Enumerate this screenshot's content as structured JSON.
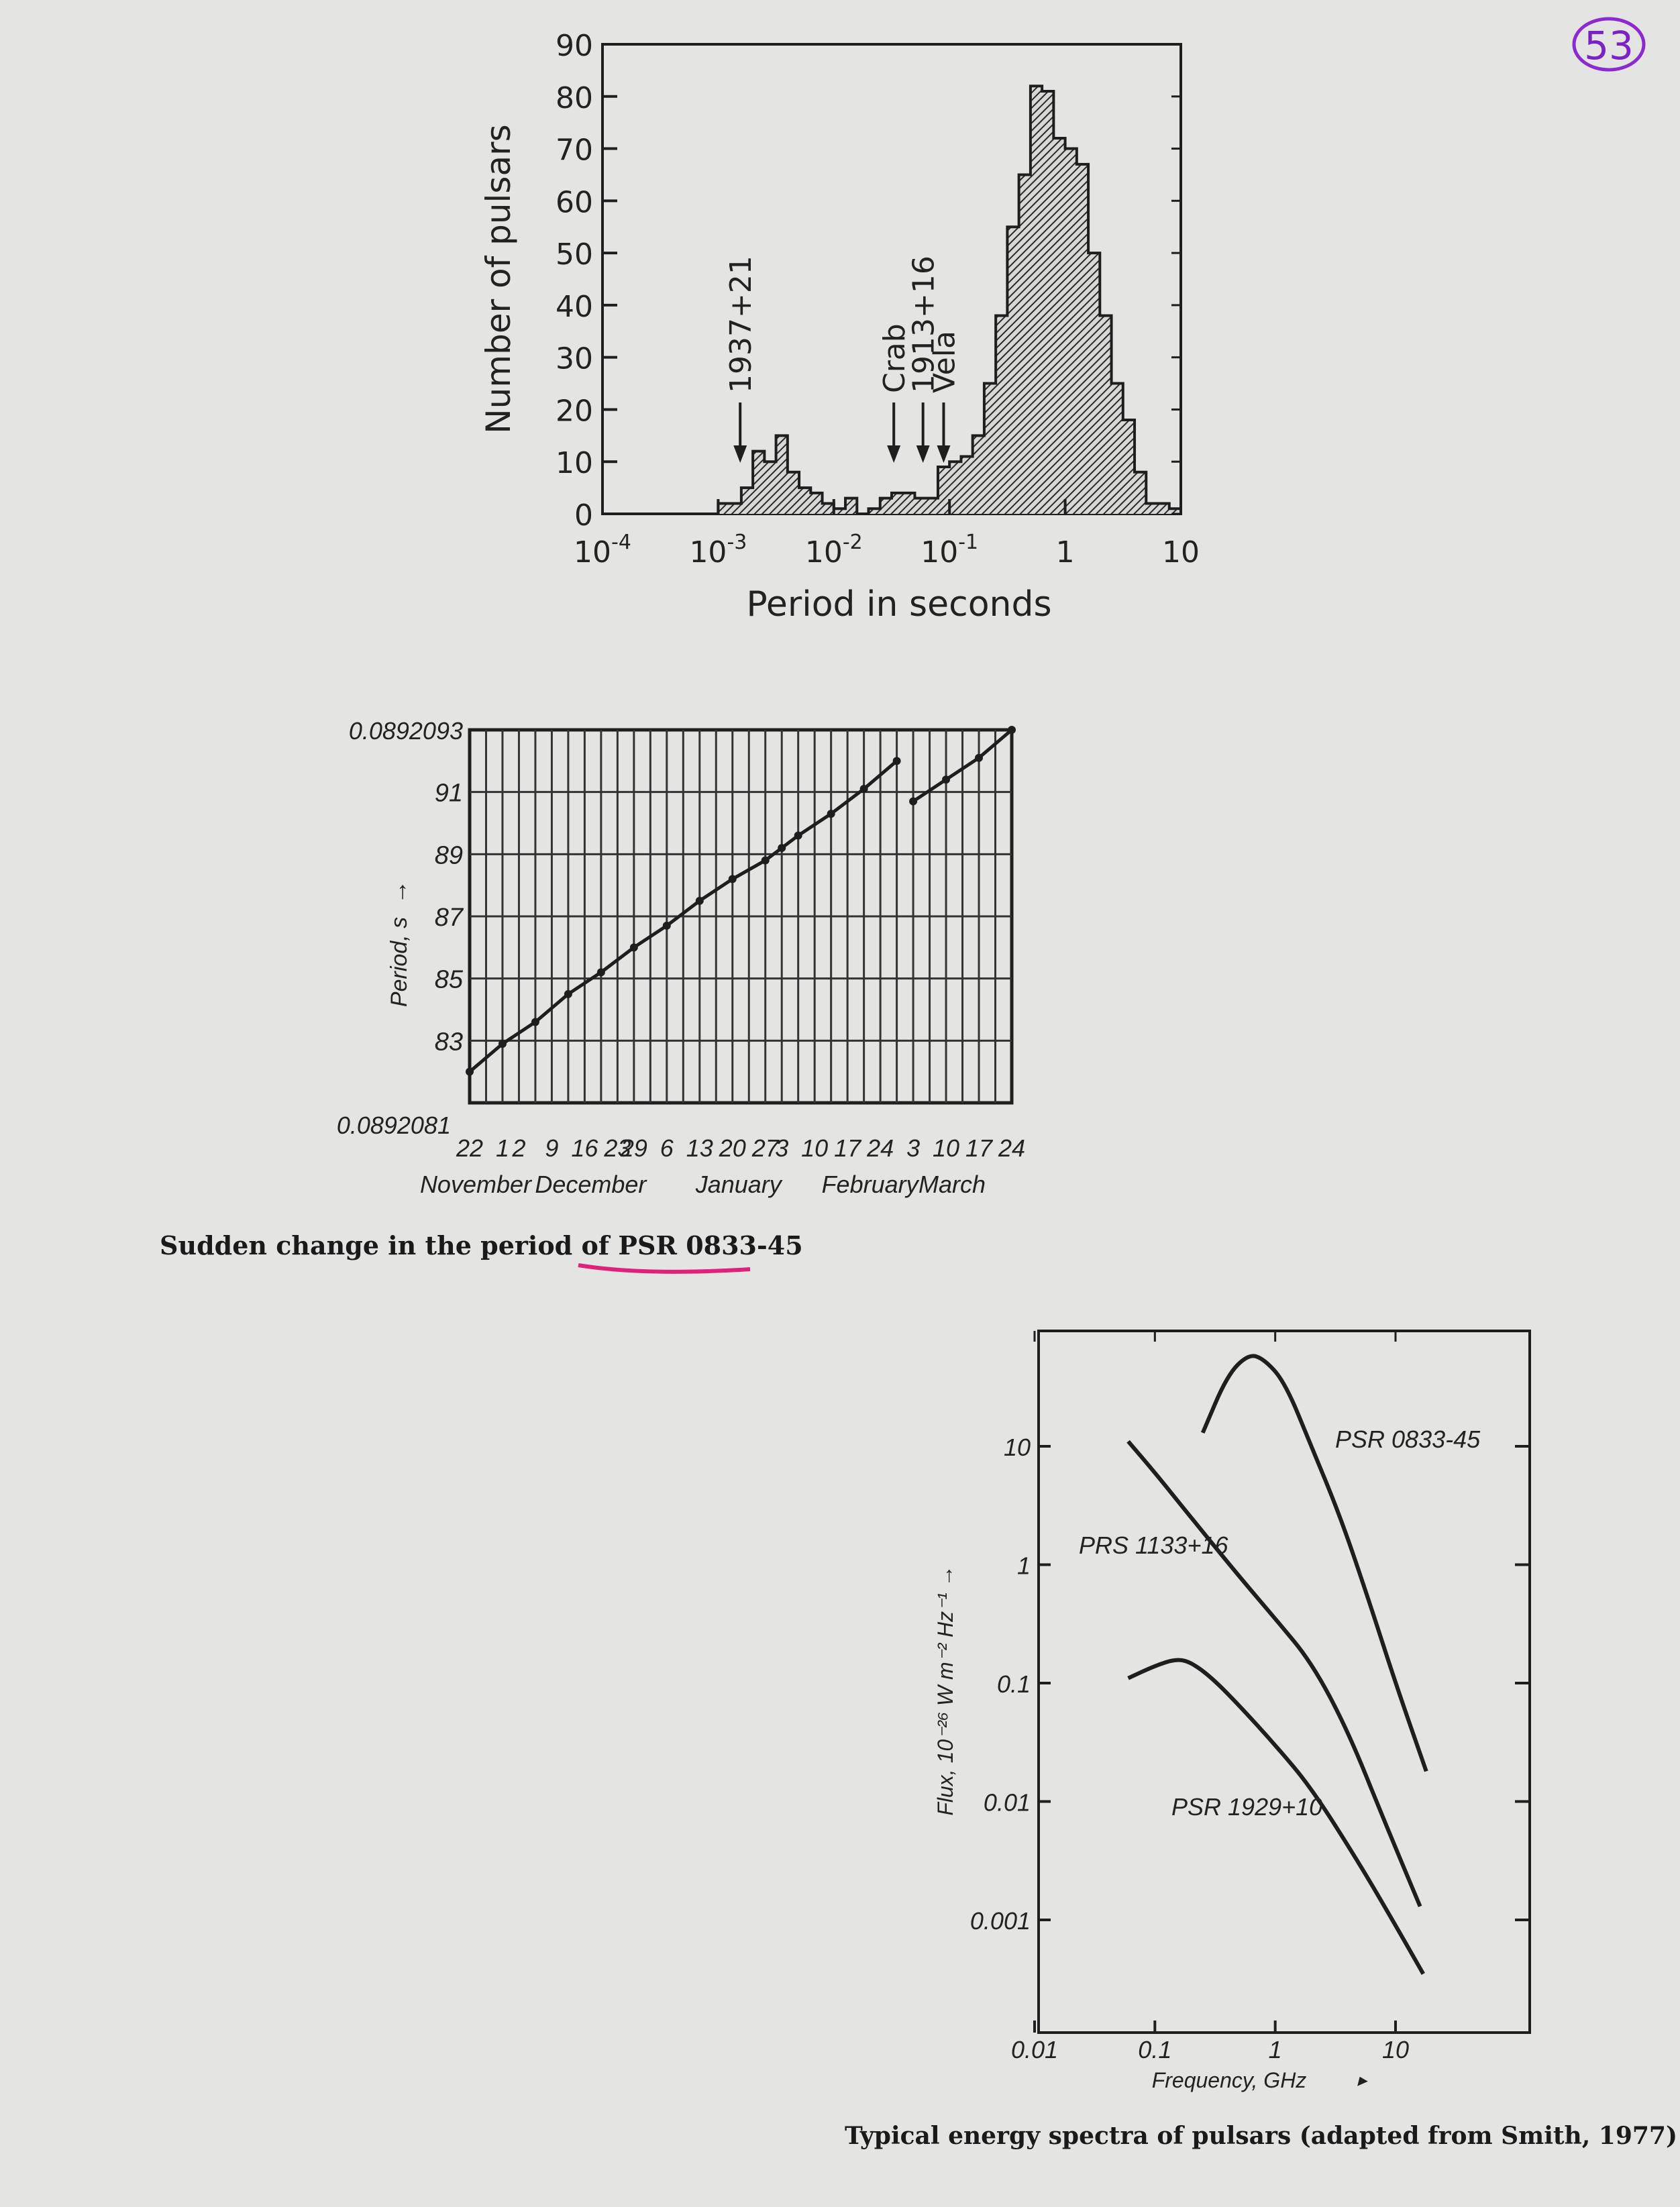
{
  "page_number": "53",
  "chart_data": [
    {
      "type": "bar",
      "xscale": "log",
      "xlim": [
        0.0001,
        10
      ],
      "ylim": [
        0,
        90
      ],
      "xlabel": "Period in seconds",
      "ylabel": "Number of pulsars",
      "yticks": [
        "0",
        "10",
        "20",
        "30",
        "40",
        "50",
        "60",
        "70",
        "80",
        "90"
      ],
      "xticks": [
        {
          "base": "10",
          "exp": "-4"
        },
        {
          "base": "10",
          "exp": "-3"
        },
        {
          "base": "10",
          "exp": "-2"
        },
        {
          "base": "10",
          "exp": "-1"
        },
        {
          "base": "1",
          "exp": ""
        },
        {
          "base": "10",
          "exp": ""
        }
      ],
      "bins_log_start": -3.0,
      "bin_width_log": 0.1,
      "values": [
        2,
        2,
        5,
        12,
        10,
        15,
        8,
        5,
        4,
        2,
        1,
        3,
        0,
        1,
        3,
        4,
        4,
        3,
        3,
        9,
        10,
        11,
        15,
        25,
        38,
        55,
        65,
        82,
        81,
        72,
        70,
        67,
        50,
        38,
        25,
        18,
        8,
        2,
        2,
        1
      ],
      "annotations": [
        {
          "label": "1937+21",
          "x": 0.00155
        },
        {
          "label": "Crab",
          "x": 0.033
        },
        {
          "label": "1913+16",
          "x": 0.059
        },
        {
          "label": "Vela",
          "x": 0.089
        }
      ]
    },
    {
      "type": "line",
      "title": "Sudden change in the period of PSR 0833-45",
      "ylabel": "Period, s",
      "ylabel_arrow": "→",
      "ylim": [
        0.0892081,
        0.0892093
      ],
      "y_top_label": "0.0892093",
      "y_bottom_label": "0.0892081",
      "yticks": [
        "91",
        "89",
        "87",
        "85",
        "83"
      ],
      "xticks": [
        "22",
        "1",
        "2",
        "9",
        "16",
        "23",
        "29",
        "6",
        "13",
        "20",
        "27",
        "3",
        "10",
        "17",
        "24",
        "3",
        "10",
        "17",
        "24"
      ],
      "months": [
        "November",
        "December",
        "January",
        "February",
        "March"
      ],
      "series": [
        {
          "x": [
            0,
            2,
            4,
            6,
            8,
            10,
            12,
            14,
            16,
            18,
            19,
            20,
            22,
            24,
            26
          ],
          "values": [
            0.0892082,
            0.08920829,
            0.08920836,
            0.08920845,
            0.08920852,
            0.0892086,
            0.08920867,
            0.08920875,
            0.08920882,
            0.08920888,
            0.08920892,
            0.08920896,
            0.08920903,
            0.08920911,
            0.0892092
          ]
        },
        {
          "x": [
            27,
            29,
            31,
            33
          ],
          "values": [
            0.08920907,
            0.08920914,
            0.08920921,
            0.0892093
          ]
        }
      ]
    },
    {
      "type": "line",
      "title": "Typical energy spectra of pulsars (adapted from Smith, 1977)",
      "xlabel": "Frequency, GHz",
      "xlabel_arrow": "▸",
      "ylabel": "Flux, 10⁻²⁶ W m⁻² Hz⁻¹ →",
      "xscale": "log",
      "yscale": "log",
      "xlim": [
        0.01,
        100
      ],
      "ylim": [
        0.0001,
        100
      ],
      "xticks": [
        "0.01",
        "0.1",
        "1",
        "10"
      ],
      "yticks": [
        "10",
        "1",
        "0.1",
        "0.01",
        "0.001"
      ],
      "series": [
        {
          "name": "PSR 0833-45",
          "x": [
            0.25,
            0.4,
            0.6,
            0.8,
            1.2,
            2,
            3.5,
            6,
            10,
            18
          ],
          "values": [
            13,
            40,
            60,
            55,
            35,
            10,
            2.5,
            0.5,
            0.1,
            0.018
          ]
        },
        {
          "name": "PRS 1133+16",
          "x": [
            0.06,
            0.1,
            0.2,
            0.5,
            1,
            2,
            4,
            8,
            16
          ],
          "values": [
            11,
            6,
            2.5,
            0.8,
            0.35,
            0.15,
            0.04,
            0.007,
            0.0013
          ]
        },
        {
          "name": "PSR 1929+10",
          "x": [
            0.06,
            0.1,
            0.15,
            0.2,
            0.3,
            0.5,
            1,
            2,
            5,
            10,
            17
          ],
          "values": [
            0.11,
            0.14,
            0.16,
            0.15,
            0.11,
            0.065,
            0.03,
            0.013,
            0.003,
            0.0009,
            0.00035
          ]
        }
      ]
    }
  ]
}
